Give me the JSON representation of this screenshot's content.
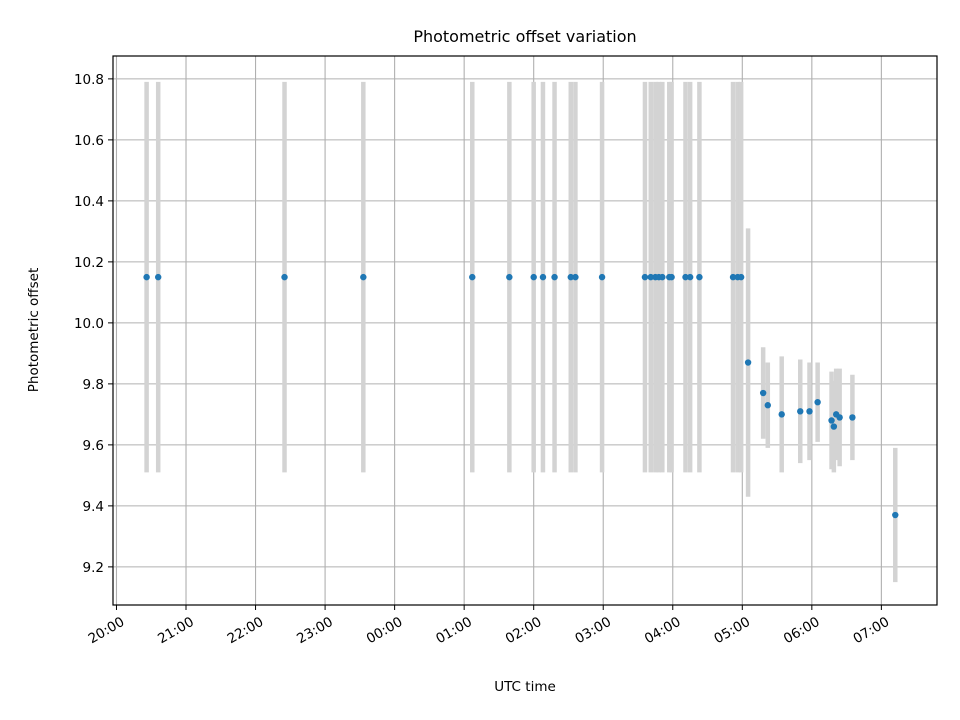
{
  "chart_data": {
    "type": "scatter",
    "title": "Photometric offset variation",
    "xlabel": "UTC time",
    "ylabel": "Photometric offset",
    "x_axis_kind": "time of day (UTC, spans midnight)",
    "xlim": [
      "19:57",
      "07:48"
    ],
    "ylim": [
      9.075,
      10.875
    ],
    "grid": true,
    "x_ticks": [
      "20:00",
      "21:00",
      "22:00",
      "23:00",
      "00:00",
      "01:00",
      "02:00",
      "03:00",
      "04:00",
      "05:00",
      "06:00",
      "07:00"
    ],
    "y_ticks": [
      "9.2",
      "9.4",
      "9.6",
      "9.8",
      "10.0",
      "10.2",
      "10.4",
      "10.6",
      "10.8"
    ],
    "colors": {
      "points": "#1f77b4",
      "error_bars": "#d3d3d3",
      "grid": "#b0b0b0",
      "frame": "#000000"
    },
    "series": [
      {
        "points": [
          {
            "x": "20:26",
            "y": 10.15,
            "err": 0.64
          },
          {
            "x": "20:36",
            "y": 10.15,
            "err": 0.64
          },
          {
            "x": "22:25",
            "y": 10.15,
            "err": 0.64
          },
          {
            "x": "23:33",
            "y": 10.15,
            "err": 0.64
          },
          {
            "x": "01:07",
            "y": 10.15,
            "err": 0.64
          },
          {
            "x": "01:39",
            "y": 10.15,
            "err": 0.64
          },
          {
            "x": "02:00",
            "y": 10.15,
            "err": 0.64
          },
          {
            "x": "02:08",
            "y": 10.15,
            "err": 0.64
          },
          {
            "x": "02:18",
            "y": 10.15,
            "err": 0.64
          },
          {
            "x": "02:32",
            "y": 10.15,
            "err": 0.64
          },
          {
            "x": "02:36",
            "y": 10.15,
            "err": 0.64
          },
          {
            "x": "02:59",
            "y": 10.15,
            "err": 0.64
          },
          {
            "x": "03:36",
            "y": 10.15,
            "err": 0.64
          },
          {
            "x": "03:41",
            "y": 10.15,
            "err": 0.64
          },
          {
            "x": "03:45",
            "y": 10.15,
            "err": 0.64
          },
          {
            "x": "03:48",
            "y": 10.15,
            "err": 0.64
          },
          {
            "x": "03:51",
            "y": 10.15,
            "err": 0.64
          },
          {
            "x": "03:57",
            "y": 10.15,
            "err": 0.64
          },
          {
            "x": "03:59",
            "y": 10.15,
            "err": 0.64
          },
          {
            "x": "04:11",
            "y": 10.15,
            "err": 0.64
          },
          {
            "x": "04:15",
            "y": 10.15,
            "err": 0.64
          },
          {
            "x": "04:23",
            "y": 10.15,
            "err": 0.64
          },
          {
            "x": "04:52",
            "y": 10.15,
            "err": 0.64
          },
          {
            "x": "04:56",
            "y": 10.15,
            "err": 0.64
          },
          {
            "x": "04:59",
            "y": 10.15,
            "err": 0.64
          },
          {
            "x": "05:05",
            "y": 9.87,
            "err": 0.44
          },
          {
            "x": "05:18",
            "y": 9.77,
            "err": 0.15
          },
          {
            "x": "05:22",
            "y": 9.73,
            "err": 0.14
          },
          {
            "x": "05:34",
            "y": 9.7,
            "err": 0.19
          },
          {
            "x": "05:50",
            "y": 9.71,
            "err": 0.17
          },
          {
            "x": "05:58",
            "y": 9.71,
            "err": 0.16
          },
          {
            "x": "06:05",
            "y": 9.74,
            "err": 0.13
          },
          {
            "x": "06:17",
            "y": 9.68,
            "err": 0.16
          },
          {
            "x": "06:19",
            "y": 9.66,
            "err": 0.15
          },
          {
            "x": "06:21",
            "y": 9.7,
            "err": 0.15
          },
          {
            "x": "06:24",
            "y": 9.69,
            "err": 0.16
          },
          {
            "x": "06:35",
            "y": 9.69,
            "err": 0.14
          },
          {
            "x": "07:12",
            "y": 9.37,
            "err": 0.22
          }
        ]
      }
    ]
  }
}
